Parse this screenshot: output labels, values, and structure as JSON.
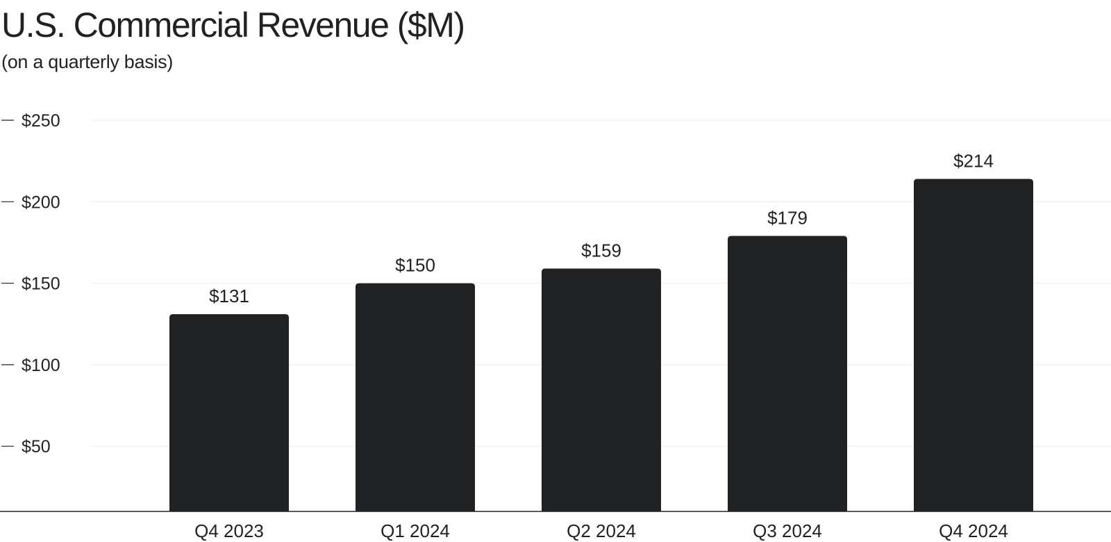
{
  "chart_data": {
    "type": "bar",
    "title": "U.S. Commercial Revenue ($M)",
    "subtitle": "(on a quarterly basis)",
    "xlabel": "",
    "ylabel": "",
    "categories": [
      "Q4 2023",
      "Q1 2024",
      "Q2 2024",
      "Q3 2024",
      "Q4 2024"
    ],
    "values": [
      131,
      150,
      159,
      179,
      214
    ],
    "data_labels": [
      "$131",
      "$150",
      "$159",
      "$179",
      "$214"
    ],
    "ylim": [
      10,
      250
    ],
    "y_ticks": [
      50,
      100,
      150,
      200,
      250
    ],
    "y_tick_labels": [
      "$50",
      "$100",
      "$150",
      "$200",
      "$250"
    ],
    "grid": true,
    "legend": "none",
    "colors": {
      "bar": "#1f2123",
      "text": "#1f2123",
      "grid": "#ececec",
      "axis": "#1f2123",
      "background": "#ffffff"
    }
  }
}
